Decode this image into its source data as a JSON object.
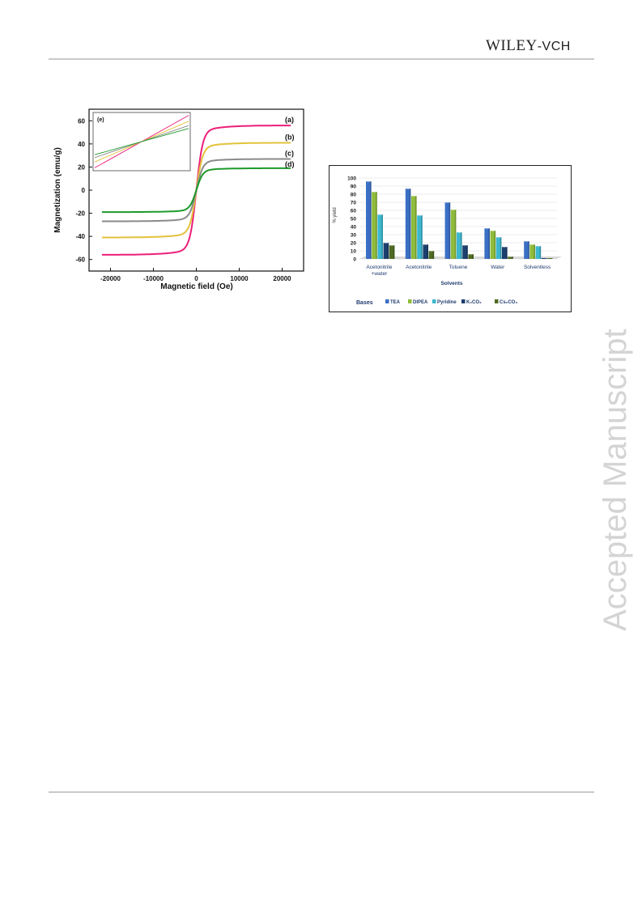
{
  "header": {
    "publisher_main": "WILEY",
    "publisher_sub": "-VCH"
  },
  "watermark": "Accepted Manuscript",
  "figures": [
    {
      "chart_data": {
        "type": "line",
        "xlabel": "Magnetic field (Oe)",
        "ylabel": "Magnetization (emu/g)",
        "xlim": [
          -25000,
          25000
        ],
        "ylim": [
          -70,
          70
        ],
        "xticks": [
          -20000,
          -10000,
          0,
          10000,
          20000
        ],
        "xtick_labels": [
          "-20000",
          "-10000",
          "0",
          "10000",
          "20000"
        ],
        "yticks": [
          -60,
          -40,
          -20,
          0,
          20,
          40,
          60
        ],
        "ytick_labels": [
          "-60",
          "-40",
          "-20",
          "0",
          "20",
          "40",
          "60"
        ],
        "series": [
          {
            "name": "(a)",
            "color": "#ec1e79",
            "ms": 56
          },
          {
            "name": "(b)",
            "color": "#e3c23c",
            "ms": 41
          },
          {
            "name": "(c)",
            "color": "#8a8a8a",
            "ms": 27
          },
          {
            "name": "(d)",
            "color": "#1e9a2a",
            "ms": 19
          }
        ],
        "inset": {
          "label": "(e)",
          "colors": [
            "#ec1e79",
            "#e3c23c",
            "#8a8a8a",
            "#1e9a2a"
          ]
        }
      }
    },
    {
      "chart_data": {
        "type": "bar",
        "ylabel": "% yield",
        "xlabel": "Solvents",
        "ylim": [
          0,
          100
        ],
        "yticks": [
          0,
          10,
          20,
          30,
          40,
          50,
          60,
          70,
          80,
          90,
          100
        ],
        "categories": [
          "Acetonitrile +water",
          "Acetonitrile",
          "Toluene",
          "Water",
          "Solventless"
        ],
        "legend_title": "Bases",
        "series": [
          {
            "name": "TEA",
            "color": "#3a6fc4",
            "values": [
              96,
              87,
              70,
              38,
              22
            ]
          },
          {
            "name": "DIPEA",
            "color": "#8fbc3a",
            "values": [
              83,
              78,
              61,
              35,
              18
            ]
          },
          {
            "name": "Pyridine",
            "color": "#3cb7cf",
            "values": [
              55,
              54,
              33,
              27,
              16
            ]
          },
          {
            "name": "K₂CO₃",
            "color": "#1c3f6e",
            "values": [
              20,
              18,
              17,
              15,
              0
            ]
          },
          {
            "name": "Cs₂CO₃",
            "color": "#4f6a22",
            "values": [
              17,
              10,
              6,
              3,
              0
            ]
          }
        ]
      }
    }
  ]
}
